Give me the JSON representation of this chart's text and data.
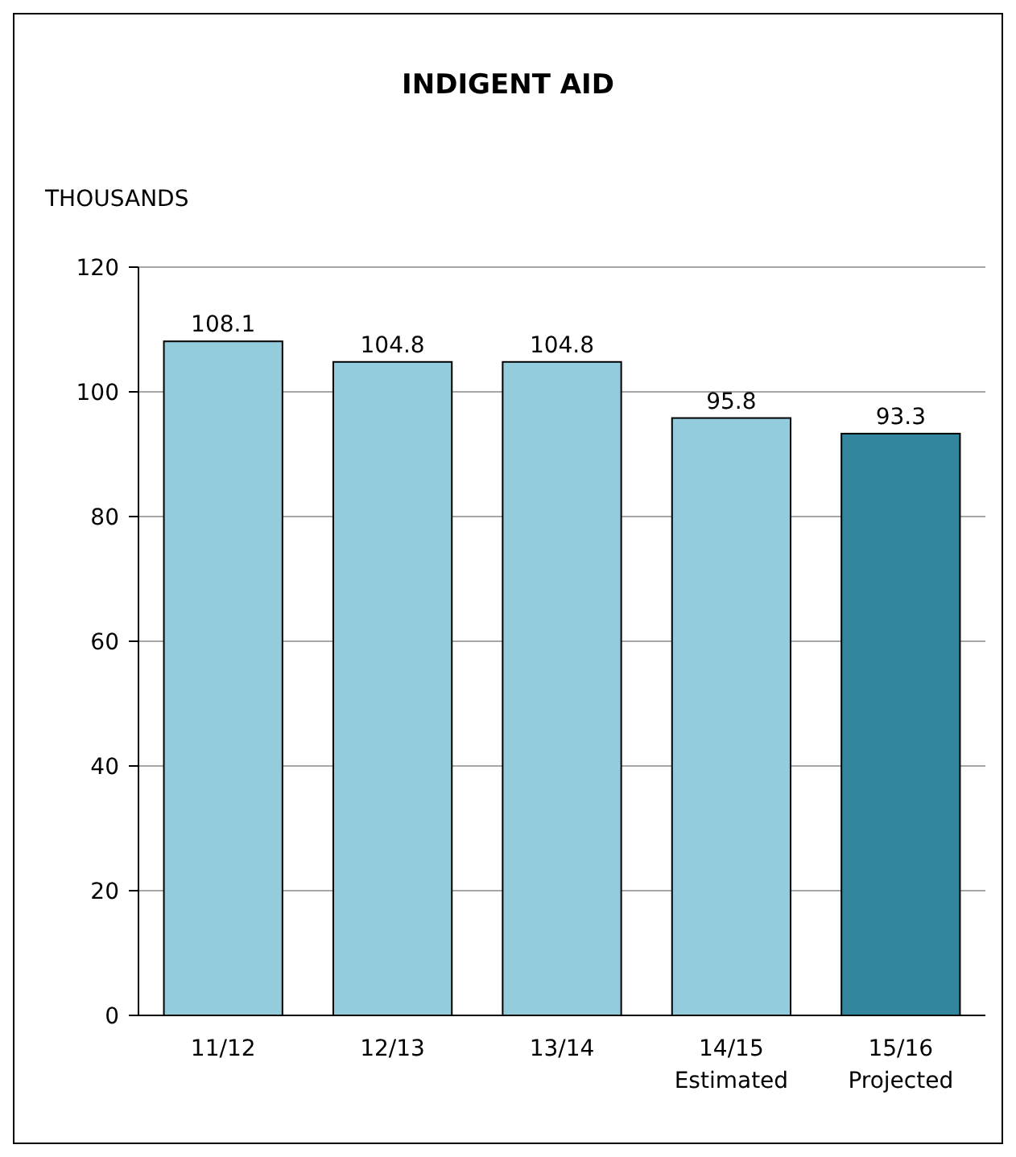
{
  "chart_data": {
    "type": "bar",
    "title": "INDIGENT AID",
    "ylabel": "THOUSANDS",
    "categories": [
      "11/12",
      "12/13",
      "13/14",
      "14/15\nEstimated",
      "15/16\nProjected"
    ],
    "values": [
      108.1,
      104.8,
      104.8,
      95.8,
      93.3
    ],
    "colors": [
      "#93cddd",
      "#93cddd",
      "#93cddd",
      "#93cddd",
      "#31859c"
    ],
    "ylim": [
      0,
      120
    ],
    "yticks": [
      0,
      20,
      40,
      60,
      80,
      100,
      120
    ],
    "grid": "y",
    "data_labels": true
  }
}
